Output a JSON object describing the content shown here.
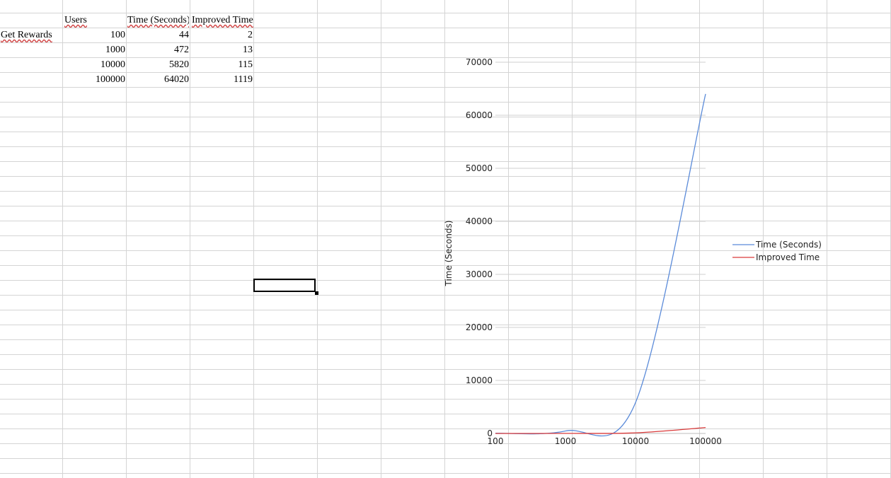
{
  "sheet": {
    "row_label": "Get Rewards",
    "headers": [
      "Users",
      "Time (Seconds)",
      "Improved Time"
    ],
    "rows": [
      [
        "100",
        "44",
        "2"
      ],
      [
        "1000",
        "472",
        "13"
      ],
      [
        "10000",
        "5820",
        "115"
      ],
      [
        "100000",
        "64020",
        "1119"
      ]
    ]
  },
  "chart_data": {
    "type": "line",
    "x": [
      100,
      1000,
      10000,
      100000
    ],
    "x_tick_labels": [
      "100",
      "1000",
      "10000",
      "100000"
    ],
    "x_scale": "log",
    "ylabel": "Time (Seconds)",
    "ylim": [
      0,
      70000
    ],
    "y_ticks": [
      0,
      10000,
      20000,
      30000,
      40000,
      50000,
      60000,
      70000
    ],
    "grid": true,
    "legend": "right",
    "series": [
      {
        "name": "Time (Seconds)",
        "values": [
          44,
          472,
          5820,
          64020
        ],
        "color": "#5b8bd9"
      },
      {
        "name": "Improved Time",
        "values": [
          2,
          13,
          115,
          1119
        ],
        "color": "#d93a3a"
      }
    ]
  }
}
